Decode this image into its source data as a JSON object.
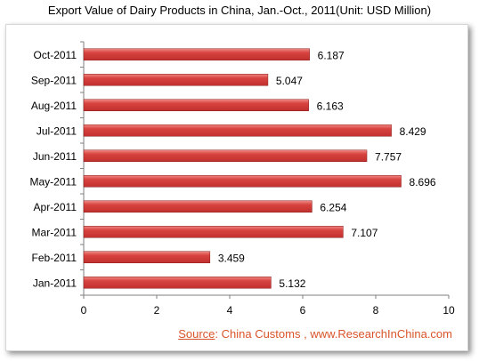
{
  "title": "Export Value of Dairy Products in China, Jan.-Oct.,  2011(Unit:  USD Million)",
  "source": {
    "label": "Source",
    "text": ":  China Customs , www.ResearchInChina.com"
  },
  "colors": {
    "bar": "#c0302e",
    "bar_highlight": "#f08a86",
    "source_text": "#d9542a"
  },
  "chart_data": {
    "type": "bar",
    "orientation": "horizontal",
    "categories": [
      "Oct-2011",
      "Sep-2011",
      "Aug-2011",
      "Jul-2011",
      "Jun-2011",
      "May-2011",
      "Apr-2011",
      "Mar-2011",
      "Feb-2011",
      "Jan-2011"
    ],
    "values": [
      6.187,
      5.047,
      6.163,
      8.429,
      7.757,
      8.696,
      6.254,
      7.107,
      3.459,
      5.132
    ],
    "data_labels": [
      "6.187",
      "5.047",
      "6.163",
      "8.429",
      "7.757",
      "8.696",
      "6.254",
      "7.107",
      "3.459",
      "5.132"
    ],
    "x_ticks": [
      "0",
      "2",
      "4",
      "6",
      "8",
      "10"
    ],
    "xlim": [
      0,
      10
    ],
    "grid": false,
    "legend": "none"
  }
}
